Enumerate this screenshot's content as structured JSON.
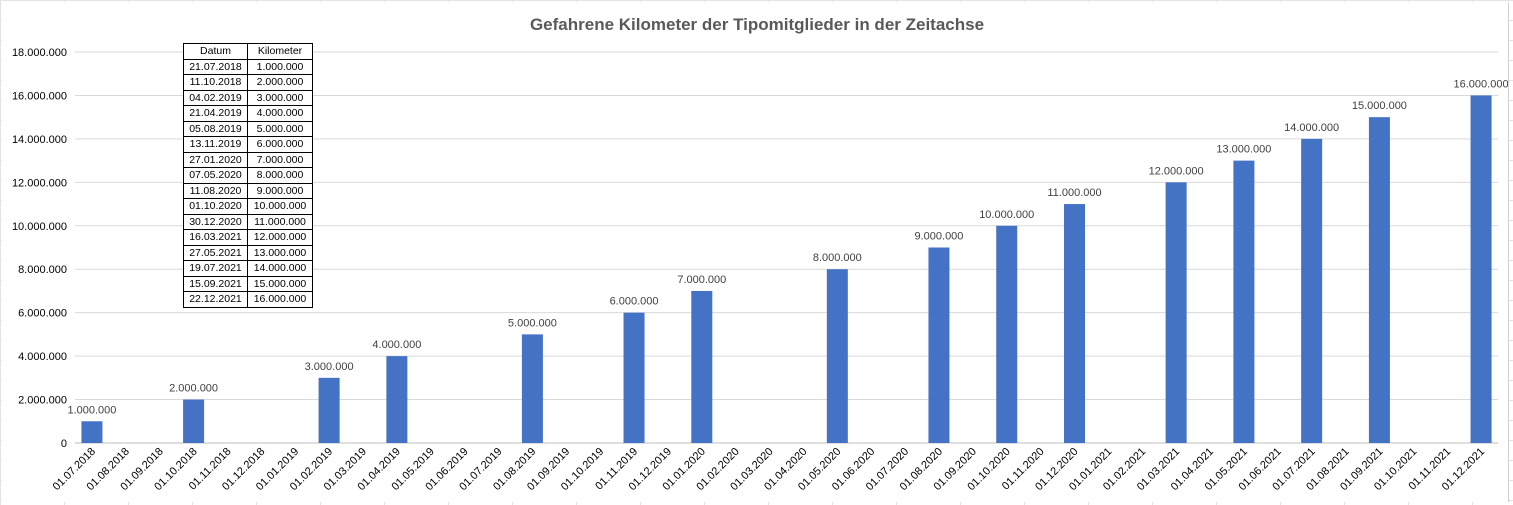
{
  "chart_data": {
    "type": "bar",
    "title": "Gefahrene Kilometer der Tipomitglieder in der Zeitachse",
    "xlabel": "",
    "ylabel": "",
    "ylim": [
      0,
      18000000
    ],
    "ytick_values": [
      0,
      2000000,
      4000000,
      6000000,
      8000000,
      10000000,
      12000000,
      14000000,
      16000000,
      18000000
    ],
    "ytick_labels": [
      "0",
      "2.000.000",
      "4.000.000",
      "6.000.000",
      "8.000.000",
      "10.000.000",
      "12.000.000",
      "14.000.000",
      "16.000.000",
      "18.000.000"
    ],
    "grid": true,
    "categories": [
      "01.07.2018",
      "01.08.2018",
      "01.09.2018",
      "01.10.2018",
      "01.11.2018",
      "01.12.2018",
      "01.01.2019",
      "01.02.2019",
      "01.03.2019",
      "01.04.2019",
      "01.05.2019",
      "01.06.2019",
      "01.07.2019",
      "01.08.2019",
      "01.09.2019",
      "01.10.2019",
      "01.11.2019",
      "01.12.2019",
      "01.01.2020",
      "01.02.2020",
      "01.03.2020",
      "01.04.2020",
      "01.05.2020",
      "01.06.2020",
      "01.07.2020",
      "01.08.2020",
      "01.09.2020",
      "01.10.2020",
      "01.11.2020",
      "01.12.2020",
      "01.01.2021",
      "01.02.2021",
      "01.03.2021",
      "01.04.2021",
      "01.05.2021",
      "01.06.2021",
      "01.07.2021",
      "01.08.2021",
      "01.09.2021",
      "01.10.2021",
      "01.11.2021",
      "01.12.2021"
    ],
    "values": [
      1000000,
      null,
      null,
      2000000,
      null,
      null,
      null,
      3000000,
      null,
      4000000,
      null,
      null,
      null,
      5000000,
      null,
      null,
      6000000,
      null,
      7000000,
      null,
      null,
      null,
      8000000,
      null,
      null,
      9000000,
      null,
      10000000,
      null,
      11000000,
      null,
      null,
      12000000,
      null,
      13000000,
      null,
      14000000,
      null,
      15000000,
      null,
      null,
      16000000
    ],
    "value_labels": [
      "1.000.000",
      "",
      "",
      "2.000.000",
      "",
      "",
      "",
      "3.000.000",
      "",
      "4.000.000",
      "",
      "",
      "",
      "5.000.000",
      "",
      "",
      "6.000.000",
      "",
      "7.000.000",
      "",
      "",
      "",
      "8.000.000",
      "",
      "",
      "9.000.000",
      "",
      "10.000.000",
      "",
      "11.000.000",
      "",
      "",
      "12.000.000",
      "",
      "13.000.000",
      "",
      "14.000.000",
      "",
      "15.000.000",
      "",
      "",
      "16.000.000"
    ],
    "bar_color": "#4472c4"
  },
  "data_table": {
    "headers": [
      "Datum",
      "Kilometer"
    ],
    "rows": [
      [
        "21.07.2018",
        "1.000.000"
      ],
      [
        "11.10.2018",
        "2.000.000"
      ],
      [
        "04.02.2019",
        "3.000.000"
      ],
      [
        "21.04.2019",
        "4.000.000"
      ],
      [
        "05.08.2019",
        "5.000.000"
      ],
      [
        "13.11.2019",
        "6.000.000"
      ],
      [
        "27.01.2020",
        "7.000.000"
      ],
      [
        "07.05.2020",
        "8.000.000"
      ],
      [
        "11.08.2020",
        "9.000.000"
      ],
      [
        "01.10.2020",
        "10.000.000"
      ],
      [
        "30.12.2020",
        "11.000.000"
      ],
      [
        "16.03.2021",
        "12.000.000"
      ],
      [
        "27.05.2021",
        "13.000.000"
      ],
      [
        "19.07.2021",
        "14.000.000"
      ],
      [
        "15.09.2021",
        "15.000.000"
      ],
      [
        "22.12.2021",
        "16.000.000"
      ]
    ]
  }
}
